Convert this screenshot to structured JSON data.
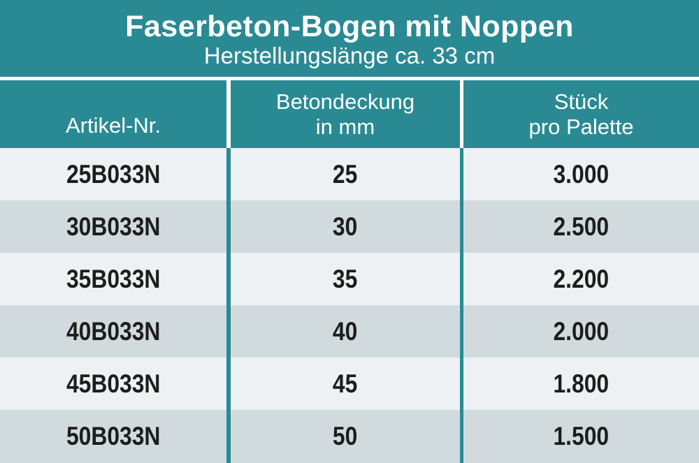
{
  "header": {
    "title": "Faserbeton-Bogen mit Noppen",
    "subtitle": "Herstellungslänge ca. 33 cm"
  },
  "table": {
    "columns": [
      {
        "line1": "Artikel-Nr."
      },
      {
        "line1": "Betondeckung",
        "line2": "in mm"
      },
      {
        "line1": "Stück",
        "line2": "pro Palette"
      }
    ],
    "rows": [
      {
        "artikel_nr": "25B033N",
        "betondeckung_mm": "25",
        "stueck_pro_palette": "3.000"
      },
      {
        "artikel_nr": "30B033N",
        "betondeckung_mm": "30",
        "stueck_pro_palette": "2.500"
      },
      {
        "artikel_nr": "35B033N",
        "betondeckung_mm": "35",
        "stueck_pro_palette": "2.200"
      },
      {
        "artikel_nr": "40B033N",
        "betondeckung_mm": "40",
        "stueck_pro_palette": "2.000"
      },
      {
        "artikel_nr": "45B033N",
        "betondeckung_mm": "45",
        "stueck_pro_palette": "1.800"
      },
      {
        "artikel_nr": "50B033N",
        "betondeckung_mm": "50",
        "stueck_pro_palette": "1.500"
      }
    ]
  },
  "colors": {
    "teal": "#2a8a94",
    "row_light": "#edf1f3",
    "row_dark": "#d1dbde",
    "text_dark": "#1d1d1b",
    "header_text": "#ffffff",
    "divider_white": "#ffffff"
  }
}
